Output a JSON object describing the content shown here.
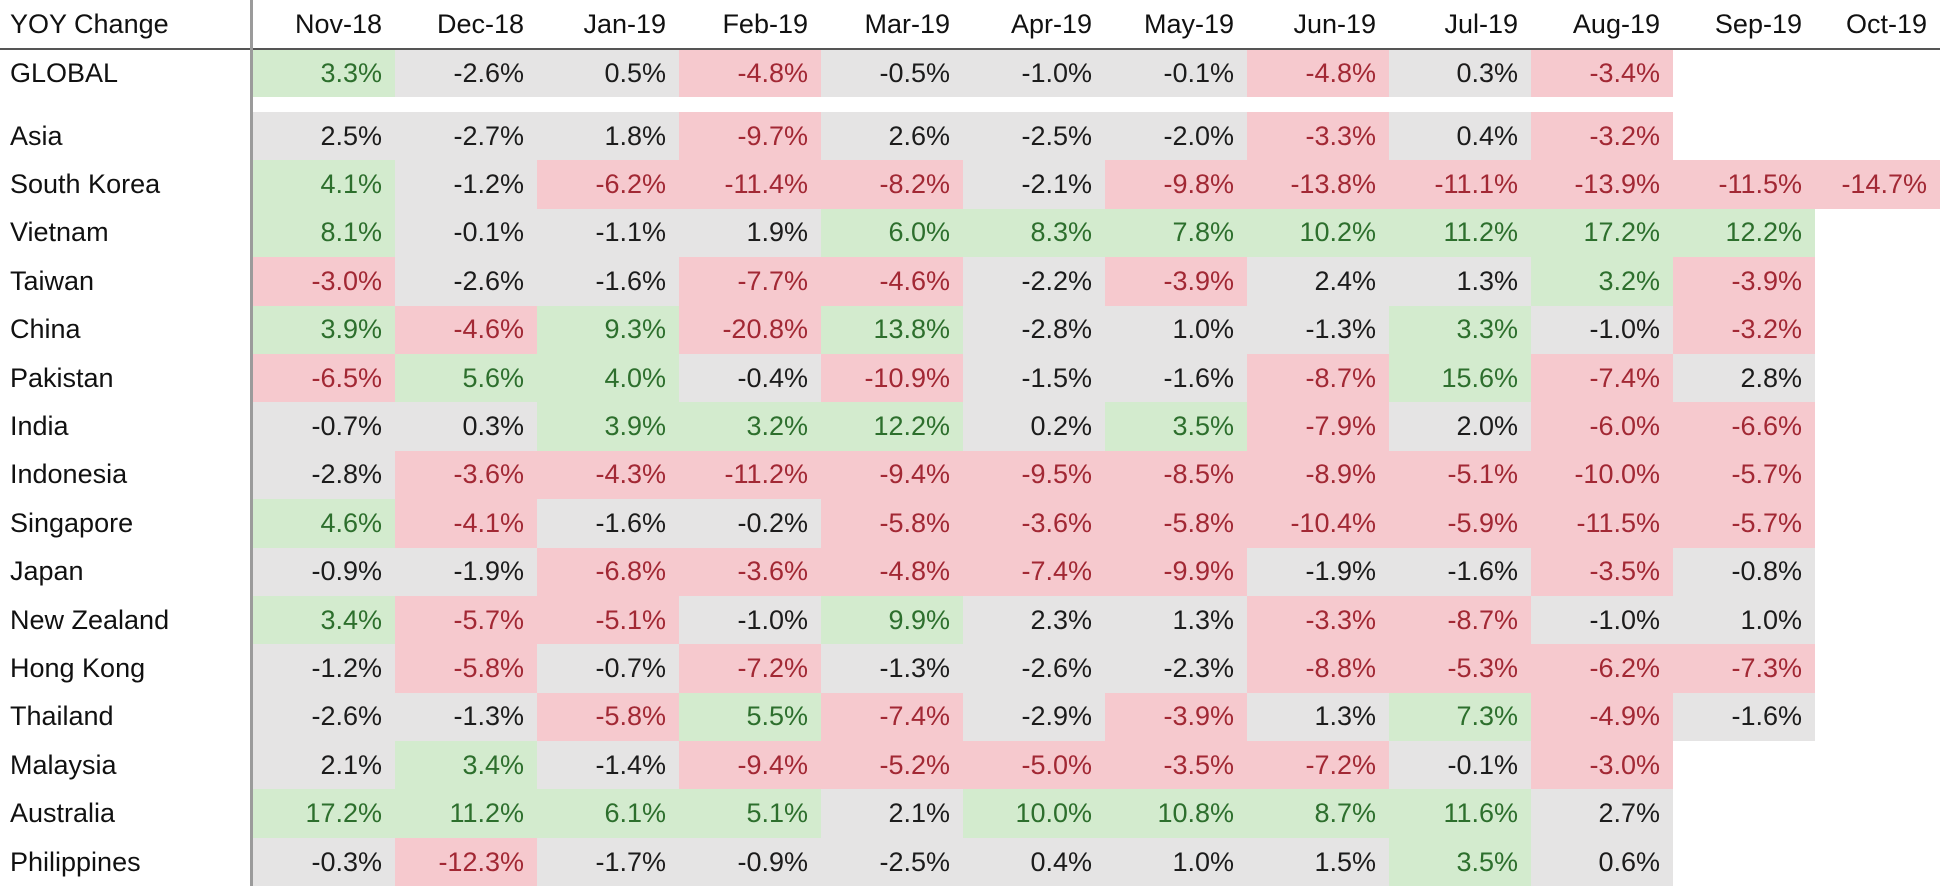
{
  "chart_data": {
    "type": "table",
    "title": "YOY Change",
    "columns": [
      "Nov-18",
      "Dec-18",
      "Jan-19",
      "Feb-19",
      "Mar-19",
      "Apr-19",
      "May-19",
      "Jun-19",
      "Jul-19",
      "Aug-19",
      "Sep-19",
      "Oct-19"
    ],
    "rows": [
      {
        "name": "GLOBAL",
        "values": [
          "3.3%",
          "-2.6%",
          "0.5%",
          "-4.8%",
          "-0.5%",
          "-1.0%",
          "-0.1%",
          "-4.8%",
          "0.3%",
          "-3.4%",
          "",
          ""
        ]
      },
      {
        "name": "Asia",
        "values": [
          "2.5%",
          "-2.7%",
          "1.8%",
          "-9.7%",
          "2.6%",
          "-2.5%",
          "-2.0%",
          "-3.3%",
          "0.4%",
          "-3.2%",
          "",
          ""
        ]
      },
      {
        "name": "South Korea",
        "values": [
          "4.1%",
          "-1.2%",
          "-6.2%",
          "-11.4%",
          "-8.2%",
          "-2.1%",
          "-9.8%",
          "-13.8%",
          "-11.1%",
          "-13.9%",
          "-11.5%",
          "-14.7%"
        ]
      },
      {
        "name": "Vietnam",
        "values": [
          "8.1%",
          "-0.1%",
          "-1.1%",
          "1.9%",
          "6.0%",
          "8.3%",
          "7.8%",
          "10.2%",
          "11.2%",
          "17.2%",
          "12.2%",
          ""
        ]
      },
      {
        "name": "Taiwan",
        "values": [
          "-3.0%",
          "-2.6%",
          "-1.6%",
          "-7.7%",
          "-4.6%",
          "-2.2%",
          "-3.9%",
          "2.4%",
          "1.3%",
          "3.2%",
          "-3.9%",
          ""
        ]
      },
      {
        "name": "China",
        "values": [
          "3.9%",
          "-4.6%",
          "9.3%",
          "-20.8%",
          "13.8%",
          "-2.8%",
          "1.0%",
          "-1.3%",
          "3.3%",
          "-1.0%",
          "-3.2%",
          ""
        ]
      },
      {
        "name": "Pakistan",
        "values": [
          "-6.5%",
          "5.6%",
          "4.0%",
          "-0.4%",
          "-10.9%",
          "-1.5%",
          "-1.6%",
          "-8.7%",
          "15.6%",
          "-7.4%",
          "2.8%",
          ""
        ]
      },
      {
        "name": "India",
        "values": [
          "-0.7%",
          "0.3%",
          "3.9%",
          "3.2%",
          "12.2%",
          "0.2%",
          "3.5%",
          "-7.9%",
          "2.0%",
          "-6.0%",
          "-6.6%",
          ""
        ]
      },
      {
        "name": "Indonesia",
        "values": [
          "-2.8%",
          "-3.6%",
          "-4.3%",
          "-11.2%",
          "-9.4%",
          "-9.5%",
          "-8.5%",
          "-8.9%",
          "-5.1%",
          "-10.0%",
          "-5.7%",
          ""
        ]
      },
      {
        "name": "Singapore",
        "values": [
          "4.6%",
          "-4.1%",
          "-1.6%",
          "-0.2%",
          "-5.8%",
          "-3.6%",
          "-5.8%",
          "-10.4%",
          "-5.9%",
          "-11.5%",
          "-5.7%",
          ""
        ]
      },
      {
        "name": "Japan",
        "values": [
          "-0.9%",
          "-1.9%",
          "-6.8%",
          "-3.6%",
          "-4.8%",
          "-7.4%",
          "-9.9%",
          "-1.9%",
          "-1.6%",
          "-3.5%",
          "-0.8%",
          ""
        ]
      },
      {
        "name": "New Zealand",
        "values": [
          "3.4%",
          "-5.7%",
          "-5.1%",
          "-1.0%",
          "9.9%",
          "2.3%",
          "1.3%",
          "-3.3%",
          "-8.7%",
          "-1.0%",
          "1.0%",
          ""
        ]
      },
      {
        "name": "Hong Kong",
        "values": [
          "-1.2%",
          "-5.8%",
          "-0.7%",
          "-7.2%",
          "-1.3%",
          "-2.6%",
          "-2.3%",
          "-8.8%",
          "-5.3%",
          "-6.2%",
          "-7.3%",
          ""
        ]
      },
      {
        "name": "Thailand",
        "values": [
          "-2.6%",
          "-1.3%",
          "-5.8%",
          "5.5%",
          "-7.4%",
          "-2.9%",
          "-3.9%",
          "1.3%",
          "7.3%",
          "-4.9%",
          "-1.6%",
          ""
        ]
      },
      {
        "name": "Malaysia",
        "values": [
          "2.1%",
          "3.4%",
          "-1.4%",
          "-9.4%",
          "-5.2%",
          "-5.0%",
          "-3.5%",
          "-7.2%",
          "-0.1%",
          "-3.0%",
          "",
          ""
        ]
      },
      {
        "name": "Australia",
        "values": [
          "17.2%",
          "11.2%",
          "6.1%",
          "5.1%",
          "2.1%",
          "10.0%",
          "10.8%",
          "8.7%",
          "11.6%",
          "2.7%",
          "",
          ""
        ]
      },
      {
        "name": "Philippines",
        "values": [
          "-0.3%",
          "-12.3%",
          "-1.7%",
          "-0.9%",
          "-2.5%",
          "0.4%",
          "1.0%",
          "1.5%",
          "3.5%",
          "0.6%",
          "",
          ""
        ]
      }
    ],
    "color_rule": {
      "green_threshold": 3.0,
      "red_threshold": -3.0
    },
    "colors": {
      "positive_bg": "#d3ebce",
      "positive_text": "#2d6f2d",
      "negative_bg": "#f6c9ce",
      "negative_text": "#a22834",
      "neutral_bg": "#e5e4e4",
      "neutral_text": "#1c1c1c",
      "header_text": "#111111",
      "divider_line": "#9b9b9b",
      "header_underline": "#555555"
    }
  }
}
